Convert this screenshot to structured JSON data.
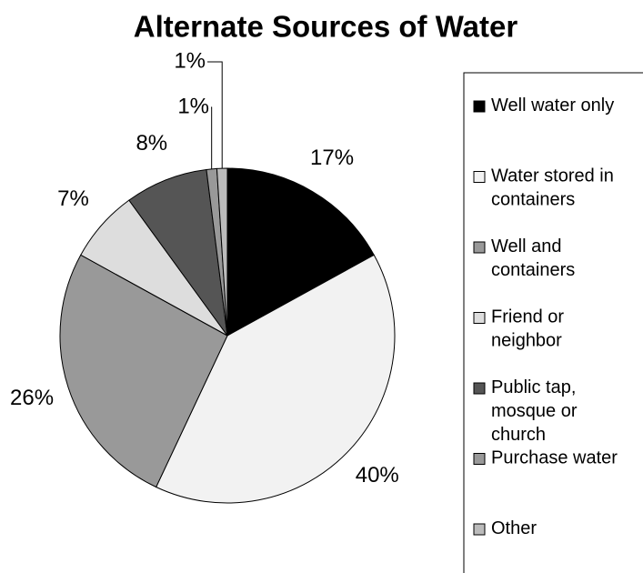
{
  "chart_data": {
    "type": "pie",
    "title": "Alternate Sources of Water",
    "categories": [
      "Well water only",
      "Water stored in containers",
      "Well and containers",
      "Friend or neighbor",
      "Public tap, mosque or church",
      "Purchase water",
      "Other"
    ],
    "values": [
      17,
      40,
      26,
      7,
      8,
      1,
      1
    ],
    "value_labels": [
      "17%",
      "40%",
      "26%",
      "7%",
      "8%",
      "1%",
      "1%"
    ],
    "colors": [
      "#000000",
      "#f2f2f2",
      "#999999",
      "#dddddd",
      "#555555",
      "#999999",
      "#bbbbbb"
    ],
    "legend": "right"
  }
}
